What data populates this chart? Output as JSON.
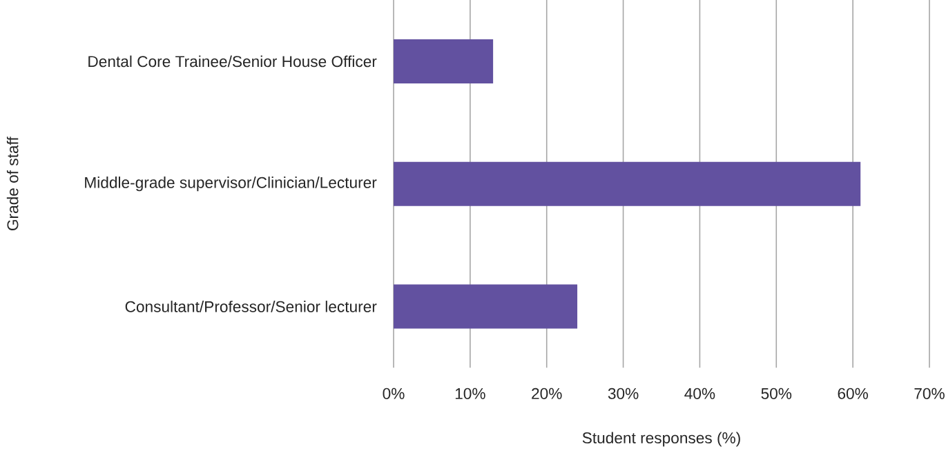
{
  "chart_data": {
    "type": "bar",
    "orientation": "horizontal",
    "xlabel": "Student responses (%)",
    "ylabel": "Grade of staff",
    "categories": [
      "Dental Core Trainee/Senior House Officer",
      "Middle-grade supervisor/Clinician/Lecturer",
      "Consultant/Professor/Senior lecturer"
    ],
    "values": [
      13,
      61,
      24
    ],
    "color": "#6251a0",
    "xlim": [
      0,
      70
    ],
    "xticks": [
      {
        "value": 0,
        "label": "0%"
      },
      {
        "value": 10,
        "label": "10%"
      },
      {
        "value": 20,
        "label": "20%"
      },
      {
        "value": 30,
        "label": "30%"
      },
      {
        "value": 40,
        "label": "40%"
      },
      {
        "value": 50,
        "label": "50%"
      },
      {
        "value": 60,
        "label": "60%"
      },
      {
        "value": 70,
        "label": "70%"
      }
    ],
    "grid": "x"
  }
}
